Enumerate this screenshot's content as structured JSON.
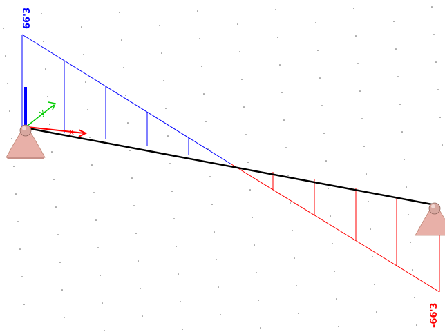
{
  "diagram": {
    "type": "beam-internal-force-diagram",
    "view": "3d-isometric",
    "background_color": "#ffffff",
    "beam_color": "#000000",
    "grid_dots": true,
    "max_positive": {
      "label": "66'3",
      "color": "#0000ff"
    },
    "max_negative": {
      "label": "-66'3",
      "color": "#ff0000"
    },
    "axes": {
      "x_color": "#ff0000",
      "y_color": "#00cc00",
      "z_color": "#0000ff"
    },
    "supports": [
      {
        "name": "left-support",
        "icon": "pinned-support-icon",
        "color": "#e8b0a8"
      },
      {
        "name": "right-support",
        "icon": "pinned-support-icon",
        "color": "#e8b0a8"
      }
    ]
  }
}
